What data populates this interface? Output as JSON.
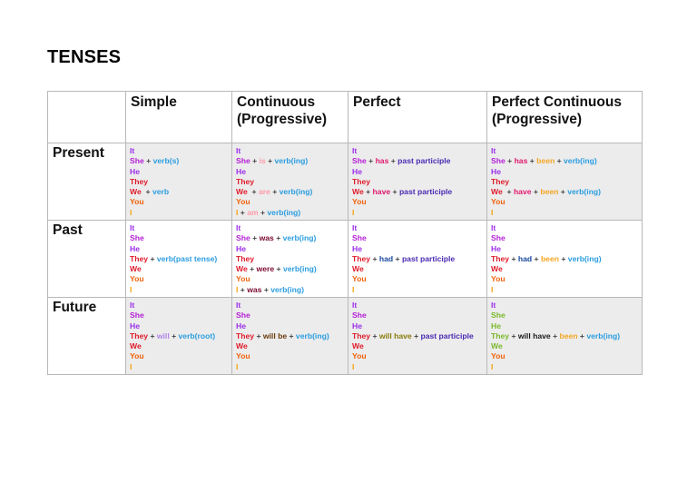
{
  "title": "TENSES",
  "colors": {
    "it": "#9b2ee8",
    "she": "#b41fd6",
    "he": "#9b2ee8",
    "they": "#e01a2b",
    "we": "#e01a2b",
    "you": "#f0620a",
    "i": "#f5a20a",
    "verb": "#2b9de0",
    "is": "#ff9aa8",
    "am": "#ff9aa8",
    "are": "#ff9aa8",
    "was": "#7a0a2e",
    "were": "#7a0a2e",
    "has": "#e0186e",
    "have": "#e0186e",
    "had": "#1a4aa0",
    "past_participle": "#4a2ab4",
    "been": "#f5a623",
    "will": "#b084e8",
    "will_be": "#6a3a0a",
    "will_have": "#8a7a0a",
    "future_pc_pronoun": "#7ab82a",
    "plus": "#444444",
    "row_shade": "#ececec",
    "border": "#b8b8b8"
  },
  "columns": [
    {
      "label": "Simple"
    },
    {
      "label": "Continuous\n(Progressive)"
    },
    {
      "label": "Perfect"
    },
    {
      "label": "Perfect Continuous\n(Progressive)"
    }
  ],
  "rows": [
    {
      "label": "Present",
      "cells": [
        [
          [
            {
              "t": "It",
              "c": "it"
            }
          ],
          [
            {
              "t": "She",
              "c": "she"
            },
            {
              "t": " + ",
              "c": "plus"
            },
            {
              "t": "verb(s)",
              "c": "verb"
            }
          ],
          [
            {
              "t": "He",
              "c": "he"
            }
          ],
          [
            {
              "t": "They",
              "c": "they"
            }
          ],
          [
            {
              "t": "We",
              "c": "we"
            },
            {
              "t": "  + ",
              "c": "plus"
            },
            {
              "t": "verb",
              "c": "verb"
            }
          ],
          [
            {
              "t": "You",
              "c": "you"
            }
          ],
          [
            {
              "t": "I",
              "c": "i"
            }
          ]
        ],
        [
          [
            {
              "t": "It",
              "c": "it"
            }
          ],
          [
            {
              "t": "She",
              "c": "she"
            },
            {
              "t": " + ",
              "c": "plus"
            },
            {
              "t": "is",
              "c": "is"
            },
            {
              "t": " + ",
              "c": "plus"
            },
            {
              "t": "verb(ing)",
              "c": "verb"
            }
          ],
          [
            {
              "t": "He",
              "c": "he"
            }
          ],
          [
            {
              "t": "They",
              "c": "they"
            }
          ],
          [
            {
              "t": "We",
              "c": "we"
            },
            {
              "t": "  + ",
              "c": "plus"
            },
            {
              "t": "are",
              "c": "are"
            },
            {
              "t": " + ",
              "c": "plus"
            },
            {
              "t": "verb(ing)",
              "c": "verb"
            }
          ],
          [
            {
              "t": "You",
              "c": "you"
            }
          ],
          [
            {
              "t": "I",
              "c": "i"
            },
            {
              "t": " + ",
              "c": "plus"
            },
            {
              "t": "am",
              "c": "am"
            },
            {
              "t": " + ",
              "c": "plus"
            },
            {
              "t": "verb(ing)",
              "c": "verb"
            }
          ]
        ],
        [
          [
            {
              "t": "It",
              "c": "it"
            }
          ],
          [
            {
              "t": "She",
              "c": "she"
            },
            {
              "t": " + ",
              "c": "plus"
            },
            {
              "t": "has",
              "c": "has"
            },
            {
              "t": " + ",
              "c": "plus"
            },
            {
              "t": "past participle",
              "c": "past_participle"
            }
          ],
          [
            {
              "t": "He",
              "c": "he"
            }
          ],
          [
            {
              "t": "They",
              "c": "they"
            }
          ],
          [
            {
              "t": "We",
              "c": "we"
            },
            {
              "t": " + ",
              "c": "plus"
            },
            {
              "t": "have",
              "c": "have"
            },
            {
              "t": " + ",
              "c": "plus"
            },
            {
              "t": "past participle",
              "c": "past_participle"
            }
          ],
          [
            {
              "t": "You",
              "c": "you"
            }
          ],
          [
            {
              "t": "I",
              "c": "i"
            }
          ]
        ],
        [
          [
            {
              "t": "It",
              "c": "it"
            }
          ],
          [
            {
              "t": "She",
              "c": "she"
            },
            {
              "t": " + ",
              "c": "plus"
            },
            {
              "t": "has",
              "c": "has"
            },
            {
              "t": " + ",
              "c": "plus"
            },
            {
              "t": "been",
              "c": "been"
            },
            {
              "t": " + ",
              "c": "plus"
            },
            {
              "t": "verb(ing)",
              "c": "verb"
            }
          ],
          [
            {
              "t": "He",
              "c": "he"
            }
          ],
          [
            {
              "t": "They",
              "c": "they"
            }
          ],
          [
            {
              "t": "We",
              "c": "we"
            },
            {
              "t": "  + ",
              "c": "plus"
            },
            {
              "t": "have",
              "c": "have"
            },
            {
              "t": " + ",
              "c": "plus"
            },
            {
              "t": "been",
              "c": "been"
            },
            {
              "t": " + ",
              "c": "plus"
            },
            {
              "t": "verb(ing)",
              "c": "verb"
            }
          ],
          [
            {
              "t": "You",
              "c": "you"
            }
          ],
          [
            {
              "t": "I",
              "c": "i"
            }
          ]
        ]
      ]
    },
    {
      "label": "Past",
      "cells": [
        [
          [
            {
              "t": "It",
              "c": "it"
            }
          ],
          [
            {
              "t": "She",
              "c": "she"
            }
          ],
          [
            {
              "t": "He",
              "c": "he"
            }
          ],
          [
            {
              "t": "They",
              "c": "they"
            },
            {
              "t": " + ",
              "c": "plus"
            },
            {
              "t": "verb(past tense)",
              "c": "verb"
            }
          ],
          [
            {
              "t": "We",
              "c": "we"
            }
          ],
          [
            {
              "t": "You",
              "c": "you"
            }
          ],
          [
            {
              "t": "I",
              "c": "i"
            }
          ]
        ],
        [
          [
            {
              "t": "It",
              "c": "it"
            }
          ],
          [
            {
              "t": "She",
              "c": "she"
            },
            {
              "t": " + ",
              "c": "plus"
            },
            {
              "t": "was",
              "c": "was"
            },
            {
              "t": " + ",
              "c": "plus"
            },
            {
              "t": "verb(ing)",
              "c": "verb"
            }
          ],
          [
            {
              "t": "He",
              "c": "he"
            }
          ],
          [
            {
              "t": "They",
              "c": "they"
            }
          ],
          [
            {
              "t": "We",
              "c": "we"
            },
            {
              "t": " + ",
              "c": "plus"
            },
            {
              "t": "were",
              "c": "were"
            },
            {
              "t": " + ",
              "c": "plus"
            },
            {
              "t": "verb(ing)",
              "c": "verb"
            }
          ],
          [
            {
              "t": "You",
              "c": "you"
            }
          ],
          [
            {
              "t": "I",
              "c": "i"
            },
            {
              "t": " + ",
              "c": "plus"
            },
            {
              "t": "was",
              "c": "was"
            },
            {
              "t": " + ",
              "c": "plus"
            },
            {
              "t": "verb(ing)",
              "c": "verb"
            }
          ]
        ],
        [
          [
            {
              "t": "It",
              "c": "it"
            }
          ],
          [
            {
              "t": "She",
              "c": "she"
            }
          ],
          [
            {
              "t": "He",
              "c": "he"
            }
          ],
          [
            {
              "t": "They",
              "c": "they"
            },
            {
              "t": " + ",
              "c": "plus"
            },
            {
              "t": "had",
              "c": "had"
            },
            {
              "t": " + ",
              "c": "plus"
            },
            {
              "t": "past participle",
              "c": "past_participle"
            }
          ],
          [
            {
              "t": "We",
              "c": "we"
            }
          ],
          [
            {
              "t": "You",
              "c": "you"
            }
          ],
          [
            {
              "t": "I",
              "c": "i"
            }
          ]
        ],
        [
          [
            {
              "t": "It",
              "c": "it"
            }
          ],
          [
            {
              "t": "She",
              "c": "she"
            }
          ],
          [
            {
              "t": "He",
              "c": "he"
            }
          ],
          [
            {
              "t": "They",
              "c": "they"
            },
            {
              "t": " + ",
              "c": "plus"
            },
            {
              "t": "had",
              "c": "had"
            },
            {
              "t": " + ",
              "c": "plus"
            },
            {
              "t": "been",
              "c": "been"
            },
            {
              "t": " + ",
              "c": "plus"
            },
            {
              "t": "verb(ing)",
              "c": "verb"
            }
          ],
          [
            {
              "t": "We",
              "c": "we"
            }
          ],
          [
            {
              "t": "You",
              "c": "you"
            }
          ],
          [
            {
              "t": "I",
              "c": "i"
            }
          ]
        ]
      ]
    },
    {
      "label": "Future",
      "cells": [
        [
          [
            {
              "t": "It",
              "c": "it"
            }
          ],
          [
            {
              "t": "She",
              "c": "she"
            }
          ],
          [
            {
              "t": "He",
              "c": "he"
            }
          ],
          [
            {
              "t": "They",
              "c": "they"
            },
            {
              "t": " + ",
              "c": "plus"
            },
            {
              "t": "will",
              "c": "will"
            },
            {
              "t": " + ",
              "c": "plus"
            },
            {
              "t": "verb(root)",
              "c": "verb"
            }
          ],
          [
            {
              "t": "We",
              "c": "we"
            }
          ],
          [
            {
              "t": "You",
              "c": "you"
            }
          ],
          [
            {
              "t": "I",
              "c": "i"
            }
          ]
        ],
        [
          [
            {
              "t": "It",
              "c": "it"
            }
          ],
          [
            {
              "t": "She",
              "c": "she"
            }
          ],
          [
            {
              "t": "He",
              "c": "he"
            }
          ],
          [
            {
              "t": "They",
              "c": "they"
            },
            {
              "t": " + ",
              "c": "plus"
            },
            {
              "t": "will be",
              "c": "will_be"
            },
            {
              "t": " + ",
              "c": "plus"
            },
            {
              "t": "verb(ing)",
              "c": "verb"
            }
          ],
          [
            {
              "t": "We",
              "c": "we"
            }
          ],
          [
            {
              "t": "You",
              "c": "you"
            }
          ],
          [
            {
              "t": "I",
              "c": "i"
            }
          ]
        ],
        [
          [
            {
              "t": "It",
              "c": "it"
            }
          ],
          [
            {
              "t": "She",
              "c": "she"
            }
          ],
          [
            {
              "t": "He",
              "c": "he"
            }
          ],
          [
            {
              "t": "They",
              "c": "they"
            },
            {
              "t": " + ",
              "c": "plus"
            },
            {
              "t": "will have",
              "c": "will_have"
            },
            {
              "t": " + ",
              "c": "plus"
            },
            {
              "t": "past participle",
              "c": "past_participle"
            }
          ],
          [
            {
              "t": "We",
              "c": "we"
            }
          ],
          [
            {
              "t": "You",
              "c": "you"
            }
          ],
          [
            {
              "t": "I",
              "c": "i"
            }
          ]
        ],
        [
          [
            {
              "t": "It",
              "c": "it"
            }
          ],
          [
            {
              "t": "She",
              "c": "future_pc_pronoun"
            }
          ],
          [
            {
              "t": "He",
              "c": "future_pc_pronoun"
            }
          ],
          [
            {
              "t": "They",
              "c": "future_pc_pronoun"
            },
            {
              "t": " + ",
              "c": "plus"
            },
            {
              "t": "will have",
              "c": "will_have_dark"
            },
            {
              "t": " + ",
              "c": "plus"
            },
            {
              "t": "been",
              "c": "been"
            },
            {
              "t": " + ",
              "c": "plus"
            },
            {
              "t": "verb(ing)",
              "c": "verb"
            }
          ],
          [
            {
              "t": "We",
              "c": "future_pc_pronoun"
            }
          ],
          [
            {
              "t": "You",
              "c": "you"
            }
          ],
          [
            {
              "t": "I",
              "c": "i"
            }
          ]
        ]
      ]
    }
  ]
}
